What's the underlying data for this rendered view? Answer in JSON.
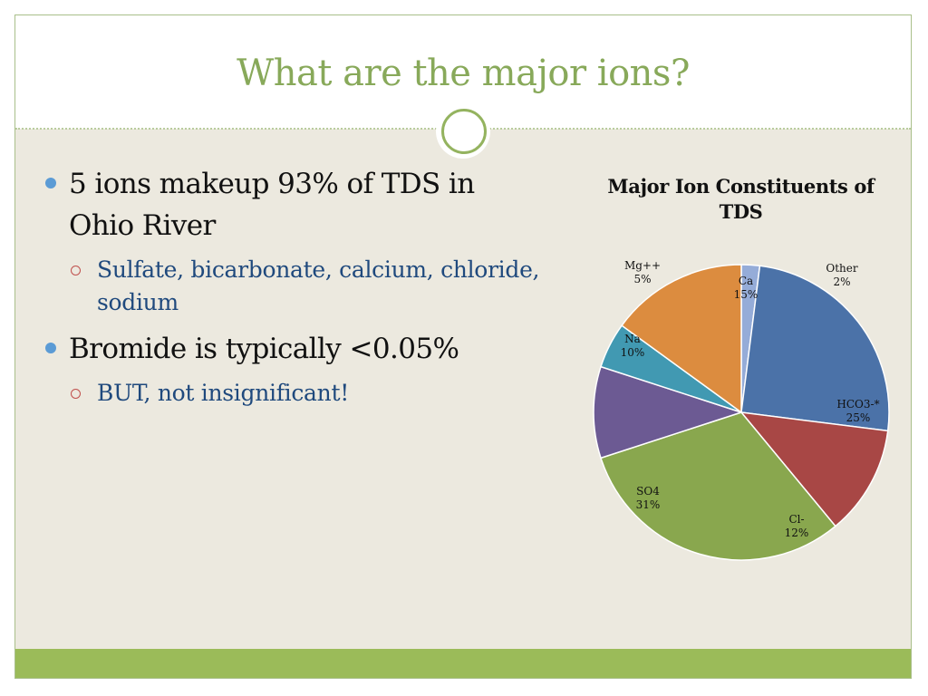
{
  "slide": {
    "title": "What are the major ions?"
  },
  "bullets": [
    {
      "text": "5 ions makeup 93% of TDS in Ohio River",
      "sub": [
        "Sulfate, bicarbonate, calcium, chloride, sodium"
      ]
    },
    {
      "text": "Bromide is typically <0.05%",
      "sub": [
        "BUT, not insignificant!"
      ]
    }
  ],
  "colors": {
    "title": "#88a95a",
    "accent_bar": "#9bbb59",
    "background": "#ece9df",
    "bullet_dot": "#5b9bd5",
    "sub_text": "#1f497d"
  },
  "chart_data": {
    "type": "pie",
    "title": "Major Ion Constituents of TDS",
    "start": "12 o'clock, clockwise",
    "slices": [
      {
        "label": "Other",
        "value": 2,
        "display": "2%",
        "color": "#95acd8"
      },
      {
        "label": "HCO3-*",
        "value": 25,
        "display": "25%",
        "color": "#4b72a8"
      },
      {
        "label": "Cl-",
        "value": 12,
        "display": "12%",
        "color": "#a84745"
      },
      {
        "label": "SO4",
        "value": 31,
        "display": "31%",
        "color": "#89a74e"
      },
      {
        "label": "Na",
        "value": 10,
        "display": "10%",
        "color": "#6c5a93"
      },
      {
        "label": "Mg++",
        "value": 5,
        "display": "5%",
        "color": "#4199b2"
      },
      {
        "label": "Ca",
        "value": 15,
        "display": "15%",
        "color": "#dc8c3f"
      }
    ],
    "legend": "none",
    "data_labels": "category name and percentage"
  }
}
